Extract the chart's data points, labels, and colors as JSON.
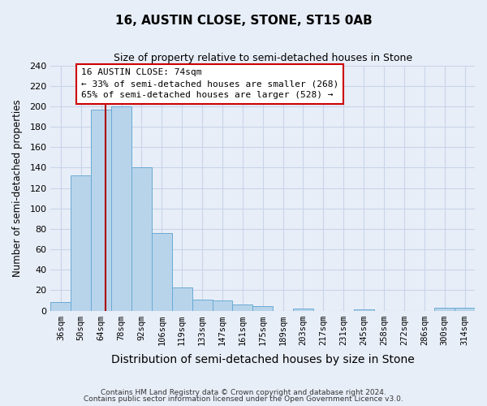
{
  "title": "16, AUSTIN CLOSE, STONE, ST15 0AB",
  "subtitle": "Size of property relative to semi-detached houses in Stone",
  "xlabel": "Distribution of semi-detached houses by size in Stone",
  "ylabel": "Number of semi-detached properties",
  "categories": [
    "36sqm",
    "50sqm",
    "64sqm",
    "78sqm",
    "92sqm",
    "106sqm",
    "119sqm",
    "133sqm",
    "147sqm",
    "161sqm",
    "175sqm",
    "189sqm",
    "203sqm",
    "217sqm",
    "231sqm",
    "245sqm",
    "258sqm",
    "272sqm",
    "286sqm",
    "300sqm",
    "314sqm"
  ],
  "values": [
    8,
    132,
    197,
    200,
    140,
    76,
    23,
    11,
    10,
    6,
    4,
    0,
    2,
    0,
    0,
    1,
    0,
    0,
    0,
    3,
    3
  ],
  "bar_color": "#b8d4ea",
  "bar_edge_color": "#6aaad4",
  "marker_line_color": "#aa0000",
  "annotation_title": "16 AUSTIN CLOSE: 74sqm",
  "annotation_line1": "← 33% of semi-detached houses are smaller (268)",
  "annotation_line2": "65% of semi-detached houses are larger (528) →",
  "annotation_box_color": "#ffffff",
  "annotation_box_edge_color": "#cc0000",
  "ylim": [
    0,
    240
  ],
  "yticks": [
    0,
    20,
    40,
    60,
    80,
    100,
    120,
    140,
    160,
    180,
    200,
    220,
    240
  ],
  "footer_line1": "Contains HM Land Registry data © Crown copyright and database right 2024.",
  "footer_line2": "Contains public sector information licensed under the Open Government Licence v3.0.",
  "background_color": "#e8eef8",
  "plot_bg_color": "#e8eef8",
  "grid_color": "#c8d4e8",
  "title_fontsize": 11,
  "subtitle_fontsize": 9
}
